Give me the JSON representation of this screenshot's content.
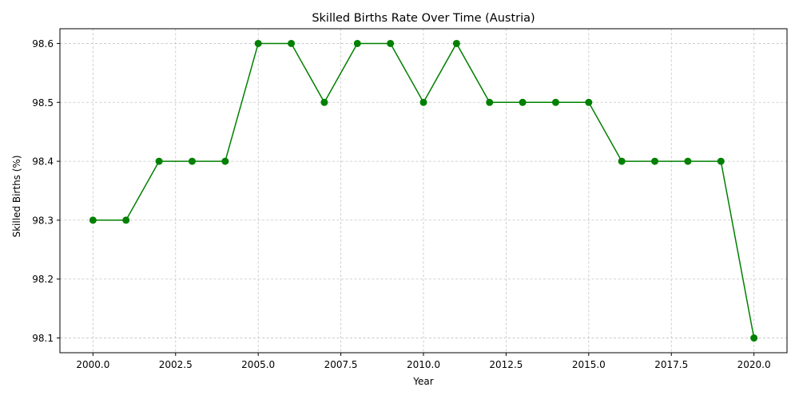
{
  "chart_data": {
    "type": "line",
    "title": "Skilled Births Rate Over Time (Austria)",
    "xlabel": "Year",
    "ylabel": "Skilled Births (%)",
    "x": [
      2000,
      2001,
      2002,
      2003,
      2004,
      2005,
      2006,
      2007,
      2008,
      2009,
      2010,
      2011,
      2012,
      2013,
      2014,
      2015,
      2016,
      2017,
      2018,
      2019,
      2020
    ],
    "series": [
      {
        "values": [
          98.3,
          98.3,
          98.4,
          98.4,
          98.4,
          98.6,
          98.6,
          98.5,
          98.6,
          98.6,
          98.5,
          98.6,
          98.5,
          98.5,
          98.5,
          98.5,
          98.4,
          98.4,
          98.4,
          98.4,
          98.1
        ]
      }
    ],
    "xlim": [
      1999,
      2021
    ],
    "ylim": [
      98.075,
      98.625
    ],
    "xticks": [
      2000.0,
      2002.5,
      2005.0,
      2007.5,
      2010.0,
      2012.5,
      2015.0,
      2017.5,
      2020.0
    ],
    "xtick_labels": [
      "2000.0",
      "2002.5",
      "2005.0",
      "2007.5",
      "2010.0",
      "2012.5",
      "2015.0",
      "2017.5",
      "2020.0"
    ],
    "yticks": [
      98.1,
      98.2,
      98.3,
      98.4,
      98.5,
      98.6
    ],
    "ytick_labels": [
      "98.1",
      "98.2",
      "98.3",
      "98.4",
      "98.5",
      "98.6"
    ],
    "grid": true,
    "colors": {
      "line": "#008000",
      "marker": "#008000",
      "grid": "#c4c4c4",
      "axes": "#000000"
    }
  }
}
